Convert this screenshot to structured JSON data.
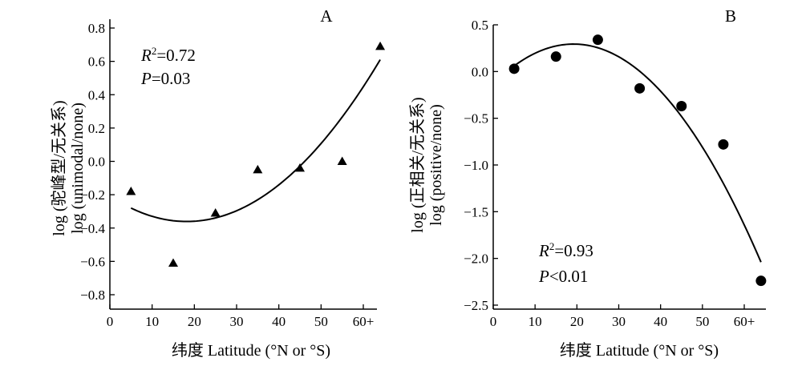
{
  "chart_data": [
    {
      "type": "scatter",
      "panel_label": "A",
      "xlabel": "纬度 Latitude (°N or °S)",
      "ylabel_line1": "log (驼峰型/无关系)",
      "ylabel_line2": "log (unimodal/none)",
      "xlim": [
        0,
        65
      ],
      "ylim": [
        -0.9,
        0.8
      ],
      "xticks": [
        0,
        10,
        20,
        30,
        40,
        50,
        60
      ],
      "xtick_labels": [
        "0",
        "10",
        "20",
        "30",
        "40",
        "50",
        "60+"
      ],
      "yticks": [
        -0.8,
        -0.6,
        -0.4,
        -0.2,
        0.0,
        0.2,
        0.4,
        0.6,
        0.8
      ],
      "ytick_labels": [
        "−0.8",
        "−0.6",
        "−0.4",
        "−0.2",
        "0.0",
        "0.2",
        "0.4",
        "0.6",
        "0.8"
      ],
      "marker": "triangle",
      "x": [
        5,
        15,
        25,
        35,
        45,
        55,
        64
      ],
      "y": [
        -0.18,
        -0.61,
        -0.31,
        -0.05,
        -0.04,
        0.0,
        0.69
      ],
      "fit": {
        "type": "quadratic",
        "x_start": 5,
        "x_end": 64,
        "y_at_5": -0.28,
        "y_min_x": 17,
        "y_min": -0.36,
        "y_at_64": 0.61
      },
      "stat_r2_label": "R",
      "stat_r2_value": "=0.72",
      "stat_p_label": "P",
      "stat_p_value": "=0.03"
    },
    {
      "type": "scatter",
      "panel_label": "B",
      "xlabel": "纬度 Latitude (°N or °S)",
      "ylabel_line1": "log (正相关/无关系)",
      "ylabel_line2": "log (positive/none)",
      "xlim": [
        0,
        67
      ],
      "ylim": [
        -2.5,
        0.5
      ],
      "xticks": [
        0,
        10,
        20,
        30,
        40,
        50,
        60
      ],
      "xtick_labels": [
        "0",
        "10",
        "20",
        "30",
        "40",
        "50",
        "60+"
      ],
      "yticks": [
        -2.5,
        -2.0,
        -1.5,
        -1.0,
        -0.5,
        0.0,
        0.5
      ],
      "ytick_labels": [
        "−2.5",
        "−2.0",
        "−1.5",
        "−1.0",
        "−0.5",
        "0.0",
        "0.5"
      ],
      "marker": "circle",
      "x": [
        5,
        15,
        25,
        35,
        45,
        55,
        64
      ],
      "y": [
        0.03,
        0.16,
        0.34,
        -0.18,
        -0.37,
        -0.78,
        -2.24
      ],
      "fit": {
        "type": "quadratic",
        "x_start": 5,
        "x_end": 64,
        "y_at_5": 0.06,
        "y_max_x": 21,
        "y_max": 0.29,
        "y_at_64": -2.04
      },
      "stat_r2_label": "R",
      "stat_r2_value": "=0.93",
      "stat_p_label": "P",
      "stat_p_value": "<0.01"
    }
  ]
}
